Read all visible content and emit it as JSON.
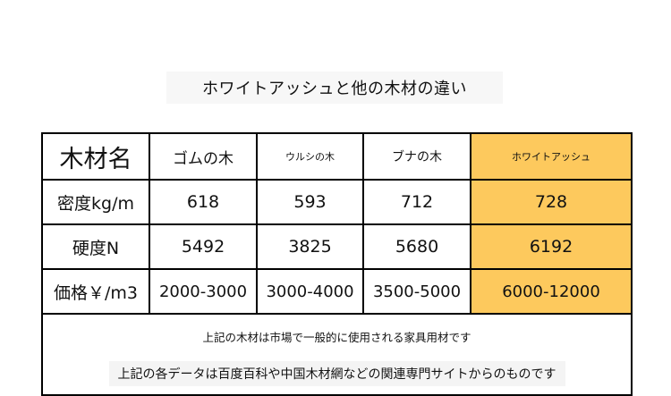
{
  "title": "ホワイトアッシュと他の木材の違い",
  "table": {
    "headers": [
      "木材名",
      "ゴムの木",
      "ウルシの木",
      "ブナの木",
      "ホワイトアッシュ"
    ],
    "rows": [
      {
        "label": "密度kg/m",
        "values": [
          "618",
          "593",
          "712",
          "728"
        ]
      },
      {
        "label": "硬度N",
        "values": [
          "5492",
          "3825",
          "5680",
          "6192"
        ]
      },
      {
        "label": "価格￥/m3",
        "values": [
          "2000-3000",
          "3000-4000",
          "3500-5000",
          "6000-12000"
        ]
      }
    ],
    "highlight_color": "#fdc95d"
  },
  "notes": {
    "line1": "上記の木材は市場で一般的に使用される家具用材です",
    "line2": "上記の各データは百度百科や中国木材網などの関連専門サイトからのものです"
  }
}
